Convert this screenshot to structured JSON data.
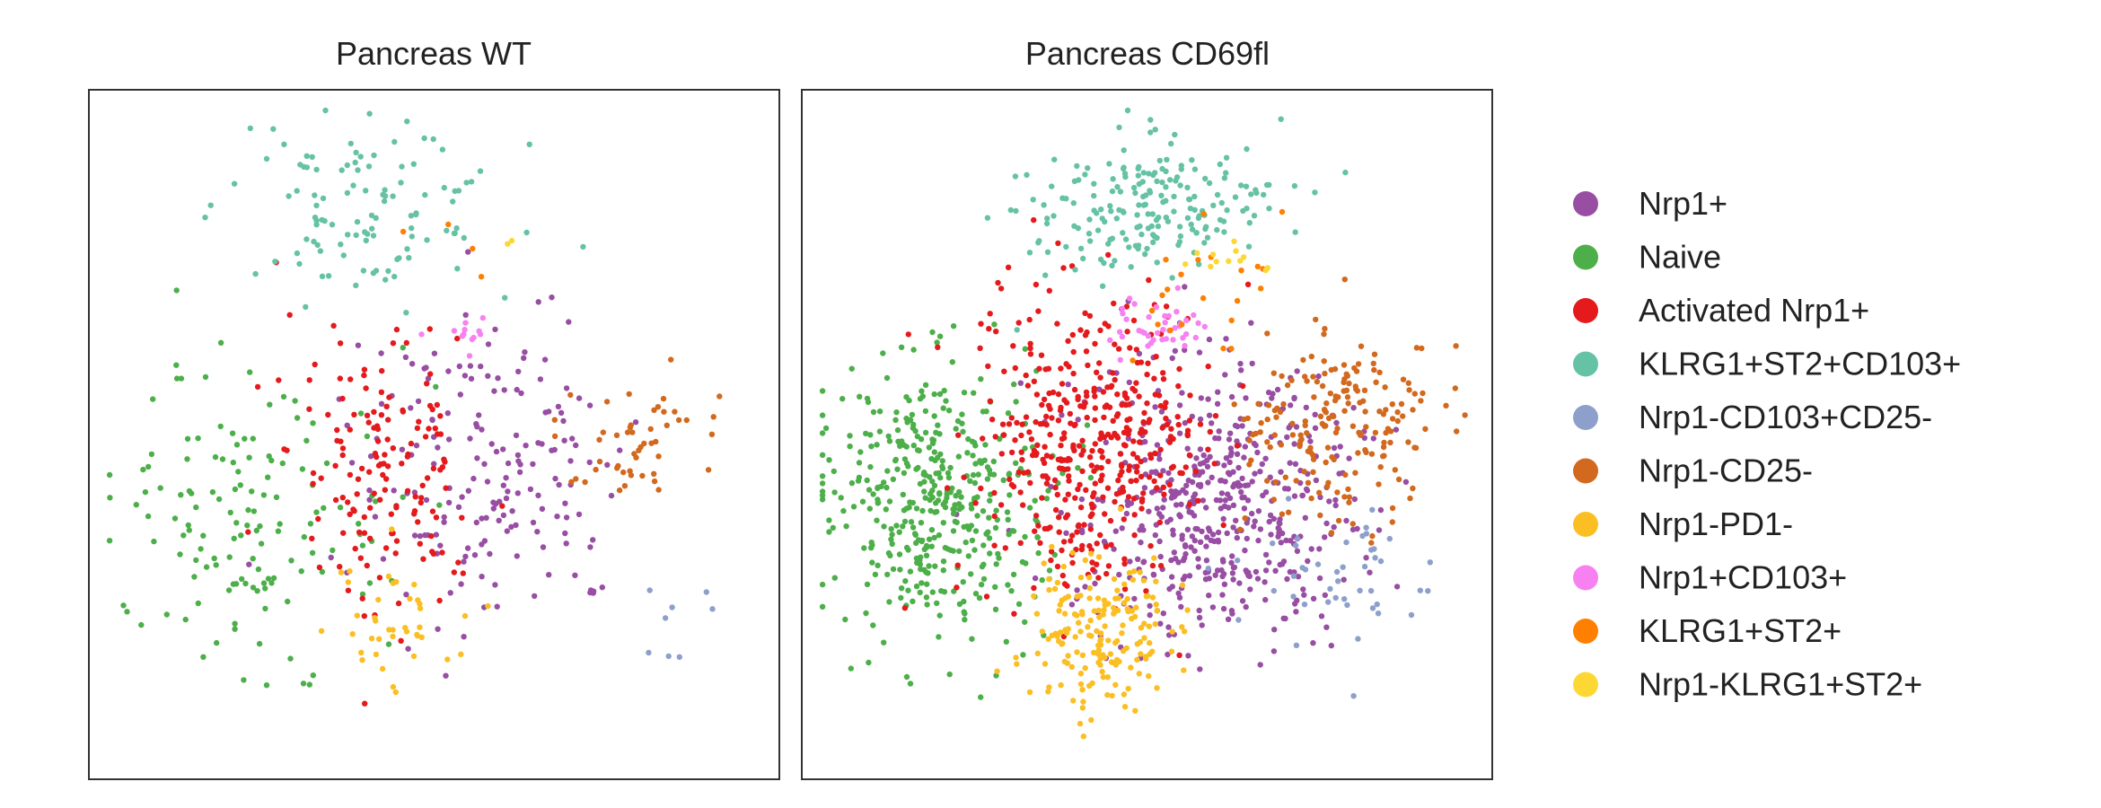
{
  "chart_data": {
    "type": "scatter",
    "legend_position": "right",
    "grid": false,
    "categories": [
      {
        "name": "Nrp1+",
        "color": "#984ea3"
      },
      {
        "name": "Naive",
        "color": "#4daf4a"
      },
      {
        "name": "Activated Nrp1+",
        "color": "#e41a1c"
      },
      {
        "name": "KLRG1+ST2+CD103+",
        "color": "#66c2a5"
      },
      {
        "name": "Nrp1-CD103+CD25-",
        "color": "#8da0cb"
      },
      {
        "name": "Nrp1-CD25-",
        "color": "#d2691e"
      },
      {
        "name": "Nrp1-PD1-",
        "color": "#fbbf24"
      },
      {
        "name": "Nrp1+CD103+",
        "color": "#f781f1"
      },
      {
        "name": "KLRG1+ST2+",
        "color": "#ff7f00"
      },
      {
        "name": "Nrp1-KLRG1+ST2+",
        "color": "#fdd835"
      }
    ],
    "panels": [
      {
        "title": "Pancreas WT",
        "clusters": [
          {
            "category": "Nrp1+",
            "cx": 0.58,
            "cy": 0.55,
            "sx": 0.1,
            "sy": 0.12,
            "n": 180
          },
          {
            "category": "Naive",
            "cx": 0.23,
            "cy": 0.63,
            "sx": 0.1,
            "sy": 0.1,
            "n": 140
          },
          {
            "category": "Activated Nrp1+",
            "cx": 0.43,
            "cy": 0.53,
            "sx": 0.07,
            "sy": 0.11,
            "n": 150
          },
          {
            "category": "KLRG1+ST2+CD103+",
            "cx": 0.4,
            "cy": 0.18,
            "sx": 0.1,
            "sy": 0.06,
            "n": 110
          },
          {
            "category": "Nrp1-CD103+CD25-",
            "cx": 0.83,
            "cy": 0.74,
            "sx": 0.05,
            "sy": 0.05,
            "n": 8
          },
          {
            "category": "Nrp1-CD25-",
            "cx": 0.8,
            "cy": 0.5,
            "sx": 0.06,
            "sy": 0.06,
            "n": 50
          },
          {
            "category": "Nrp1-PD1-",
            "cx": 0.45,
            "cy": 0.78,
            "sx": 0.06,
            "sy": 0.05,
            "n": 40
          },
          {
            "category": "Nrp1+CD103+",
            "cx": 0.54,
            "cy": 0.35,
            "sx": 0.02,
            "sy": 0.02,
            "n": 12
          },
          {
            "category": "KLRG1+ST2+",
            "cx": 0.52,
            "cy": 0.23,
            "sx": 0.03,
            "sy": 0.04,
            "n": 4
          },
          {
            "category": "Nrp1-KLRG1+ST2+",
            "cx": 0.61,
            "cy": 0.23,
            "sx": 0.01,
            "sy": 0.01,
            "n": 2
          }
        ]
      },
      {
        "title": "Pancreas CD69fl",
        "clusters": [
          {
            "category": "Nrp1+",
            "cx": 0.6,
            "cy": 0.6,
            "sx": 0.1,
            "sy": 0.1,
            "n": 500
          },
          {
            "category": "Naive",
            "cx": 0.19,
            "cy": 0.59,
            "sx": 0.08,
            "sy": 0.1,
            "n": 420
          },
          {
            "category": "Activated Nrp1+",
            "cx": 0.42,
            "cy": 0.52,
            "sx": 0.08,
            "sy": 0.11,
            "n": 430
          },
          {
            "category": "KLRG1+ST2+CD103+",
            "cx": 0.49,
            "cy": 0.17,
            "sx": 0.09,
            "sy": 0.05,
            "n": 200
          },
          {
            "category": "Nrp1-CD103+CD25-",
            "cx": 0.77,
            "cy": 0.7,
            "sx": 0.08,
            "sy": 0.05,
            "n": 45
          },
          {
            "category": "Nrp1-CD25-",
            "cx": 0.78,
            "cy": 0.49,
            "sx": 0.07,
            "sy": 0.07,
            "n": 190
          },
          {
            "category": "Nrp1-PD1-",
            "cx": 0.43,
            "cy": 0.79,
            "sx": 0.05,
            "sy": 0.06,
            "n": 180
          },
          {
            "category": "Nrp1+CD103+",
            "cx": 0.52,
            "cy": 0.35,
            "sx": 0.04,
            "sy": 0.02,
            "n": 40
          },
          {
            "category": "KLRG1+ST2+",
            "cx": 0.58,
            "cy": 0.26,
            "sx": 0.05,
            "sy": 0.06,
            "n": 22
          },
          {
            "category": "Nrp1-KLRG1+ST2+",
            "cx": 0.62,
            "cy": 0.24,
            "sx": 0.04,
            "sy": 0.02,
            "n": 12
          }
        ]
      }
    ]
  }
}
